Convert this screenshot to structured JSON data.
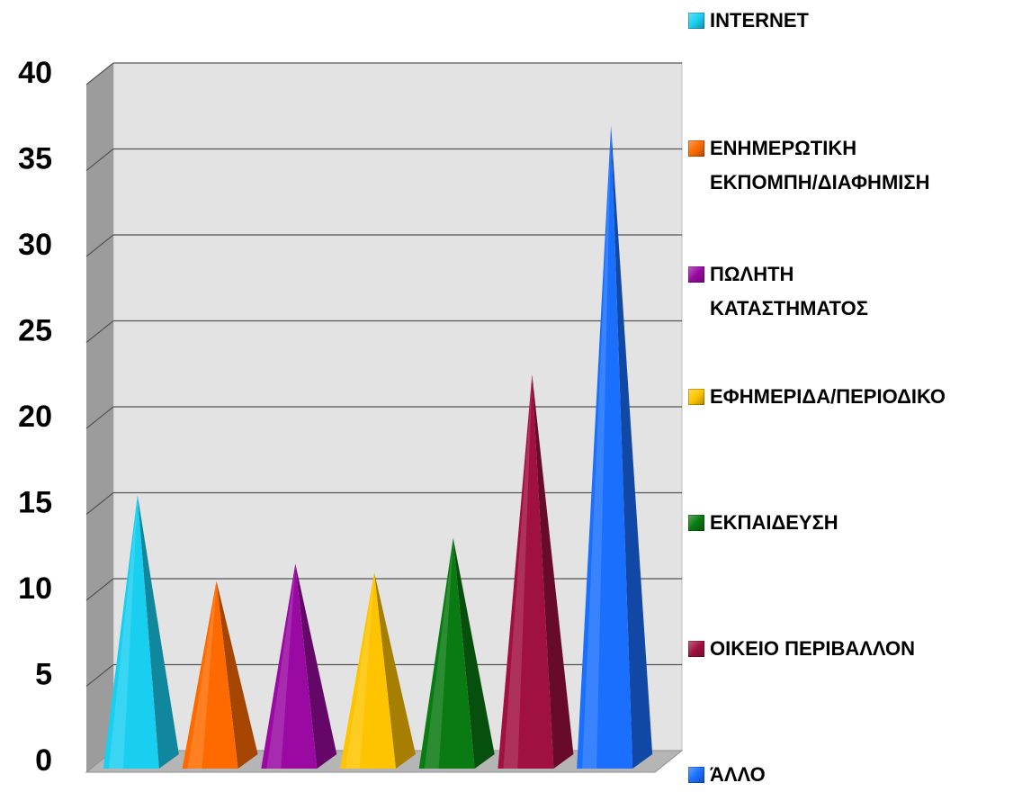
{
  "chart_data": {
    "type": "bar",
    "style": "3d-pyramid",
    "series": [
      {
        "name": "INTERNET",
        "value": 15.5,
        "color": "#19CFF0"
      },
      {
        "name": "ΕΝΗΜΕΡΩΤΙΚΗ ΕΚΠΟΜΠΗ/ΔΙΑΦΗΜΙΣΗ",
        "value": 10.5,
        "color": "#FF6A00"
      },
      {
        "name": "ΠΩΛΗΤΗ ΚΑΤΑΣΤΗΜΑΤΟΣ",
        "value": 11.5,
        "color": "#9A0AA2"
      },
      {
        "name": "ΕΦΗΜΕΡΙΔΑ/ΠΕΡΙΟΔΙΚΟ",
        "value": 11,
        "color": "#FFC400"
      },
      {
        "name": "ΕΚΠΑΙΔΕΥΣΗ",
        "value": 13,
        "color": "#0A7A12"
      },
      {
        "name": "ΟΙΚΕΙΟ ΠΕΡΙΒΑΛΛΟΝ",
        "value": 22.5,
        "color": "#A01040"
      },
      {
        "name": "ΆΛΛΟ",
        "value": 37,
        "color": "#1A6FFF"
      }
    ],
    "ylim": [
      0,
      40
    ],
    "yticks": [
      "0",
      "5",
      "10",
      "15",
      "20",
      "25",
      "30",
      "35",
      "40"
    ],
    "grid": true,
    "legend_position": "right",
    "colors": {
      "wall": "#E3E3E3",
      "side_wall": "#9C9C9C",
      "floor": "#B5B5B5",
      "gridline": "#555555"
    }
  }
}
